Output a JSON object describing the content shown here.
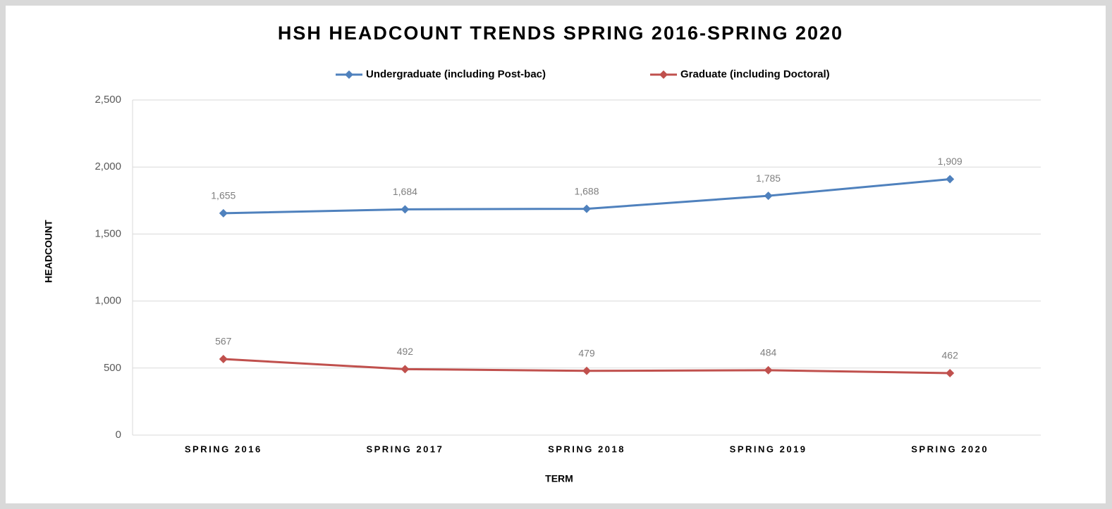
{
  "chart_data": {
    "type": "line",
    "title": "HSH HEADCOUNT TRENDS SPRING 2016-SPRING 2020",
    "x_label": "TERM",
    "y_label": "HEADCOUNT",
    "categories": [
      "SPRING 2016",
      "SPRING 2017",
      "SPRING 2018",
      "SPRING 2019",
      "SPRING 2020"
    ],
    "series": [
      {
        "name": "Undergraduate (including Post-bac)",
        "color": "#4f81bd",
        "values": [
          1655,
          1684,
          1688,
          1785,
          1909
        ],
        "value_labels": [
          "1,655",
          "1,684",
          "1,688",
          "1,785",
          "1,909"
        ]
      },
      {
        "name": "Graduate (including Doctoral)",
        "color": "#c0504d",
        "values": [
          567,
          492,
          479,
          484,
          462
        ]
      }
    ],
    "ylim": [
      0,
      2500
    ],
    "yticks": [
      0,
      500,
      {
        "value": 1000,
        "label": "1,000"
      },
      {
        "value": 1500,
        "label": "1,500"
      },
      {
        "value": 2000,
        "label": "2,000"
      },
      {
        "value": 2500,
        "label": "2,500"
      }
    ],
    "grid": true,
    "legend": "top"
  }
}
